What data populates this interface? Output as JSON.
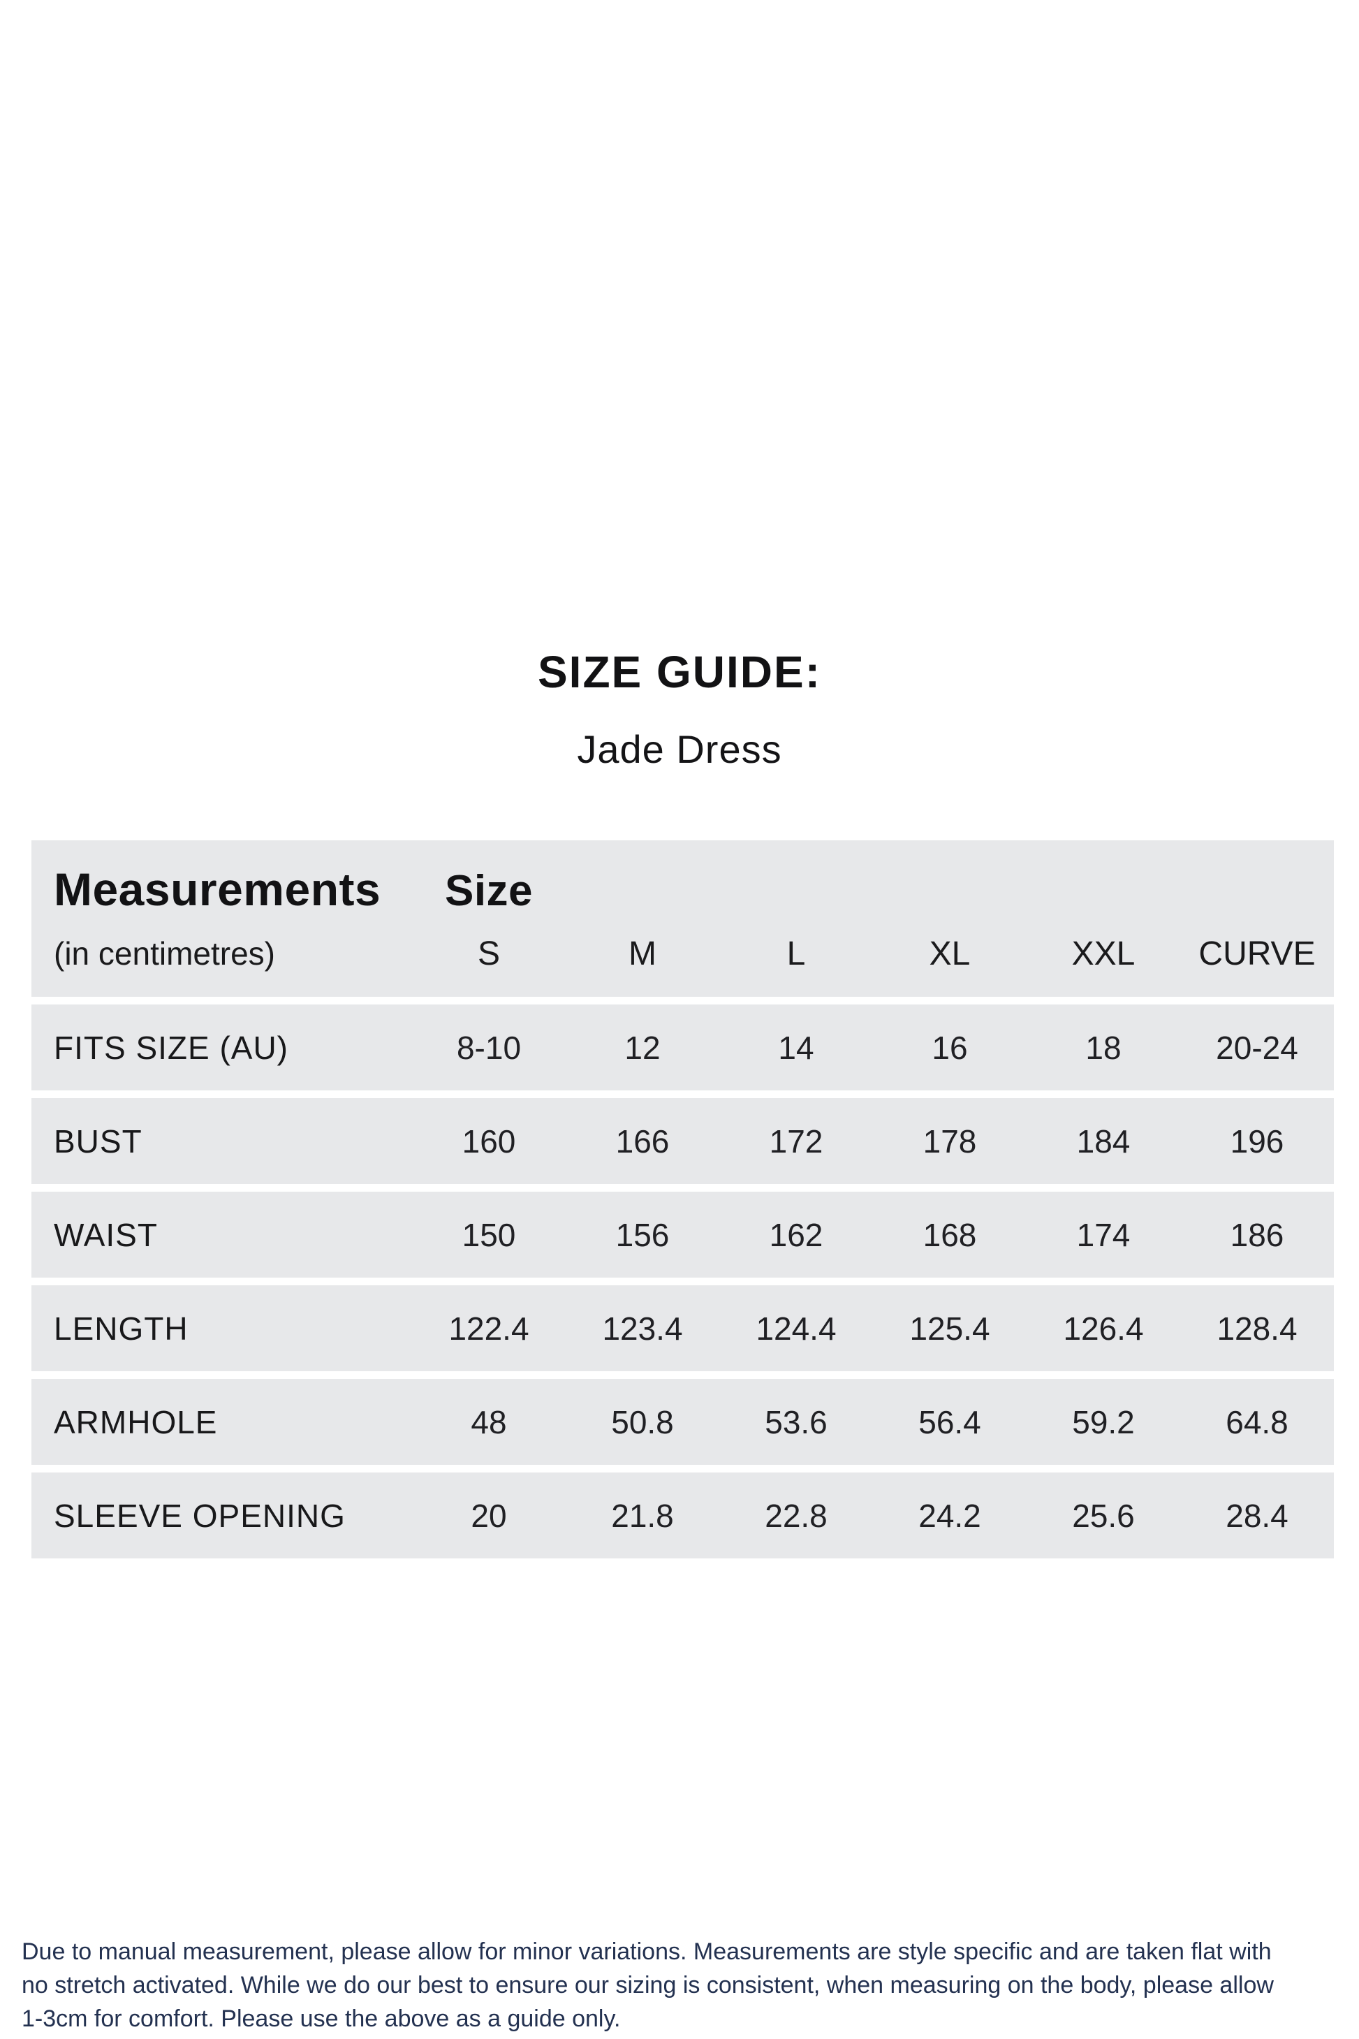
{
  "page": {
    "title": "SIZE GUIDE:",
    "subtitle": "Jade Dress"
  },
  "table": {
    "col1_header": "Measurements",
    "col1_subheader": "(in centimetres)",
    "size_header": "Size",
    "size_columns": [
      "S",
      "M",
      "L",
      "XL",
      "XXL",
      "CURVE"
    ],
    "rows": [
      {
        "label": "FITS SIZE (AU)",
        "values": [
          "8-10",
          "12",
          "14",
          "16",
          "18",
          "20-24"
        ]
      },
      {
        "label": "BUST",
        "values": [
          "160",
          "166",
          "172",
          "178",
          "184",
          "196"
        ]
      },
      {
        "label": "WAIST",
        "values": [
          "150",
          "156",
          "162",
          "168",
          "174",
          "186"
        ]
      },
      {
        "label": "LENGTH",
        "values": [
          "122.4",
          "123.4",
          "124.4",
          "125.4",
          "126.4",
          "128.4"
        ]
      },
      {
        "label": "ARMHOLE",
        "values": [
          "48",
          "50.8",
          "53.6",
          "56.4",
          "59.2",
          "64.8"
        ]
      },
      {
        "label": "SLEEVE OPENING",
        "values": [
          "20",
          "21.8",
          "22.8",
          "24.2",
          "25.6",
          "28.4"
        ]
      }
    ]
  },
  "footer": {
    "lines": [
      "Due to manual measurement, please allow for minor variations. Measurements are style specific and are taken flat with",
      "no stretch activated. While we do our best to ensure our sizing is consistent, when measuring on the body, please allow",
      "1-3cm for comfort. Please use the above as a guide only."
    ]
  },
  "colors": {
    "row_background": "#e7e8ea",
    "table_text": "#18181a",
    "footer_text": "#233150"
  }
}
